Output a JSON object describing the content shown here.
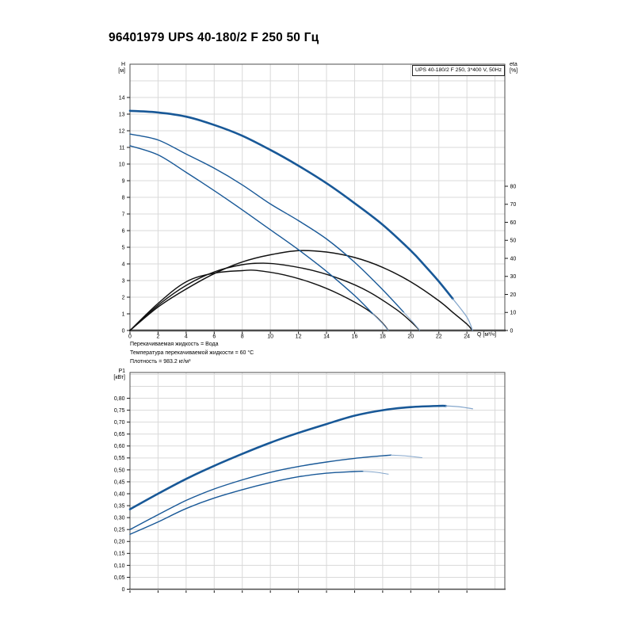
{
  "page": {
    "title": "96401979 UPS 40-180/2 F 250 50 Гц"
  },
  "notes": {
    "line1": "Перекачиваемая жидкость = Вода",
    "line2": "Температура перекачиваемой жидкости = 60 °C",
    "line3": "Плотность = 983.2 кг/м³"
  },
  "colors": {
    "curve_blue": "#185897",
    "curve_blue_light": "#85a7cc",
    "curve_black": "#111111",
    "grid": "#d9d9d9",
    "frame": "#4d4d4d",
    "tick": "#1a1a1a",
    "text": "#000000"
  },
  "chart_data": [
    {
      "id": "head-efficiency-chart",
      "type": "line",
      "legend": "UPS 40-180/2 F 250, 3*400 V, 50Hz",
      "xlabel": "Q [м³/ч]",
      "ylabel_left": [
        "H",
        "[м]"
      ],
      "ylabel_right": [
        "eta",
        "[%]"
      ],
      "xlim": [
        0,
        26.7
      ],
      "ylim_left": [
        0,
        16
      ],
      "ylim_right": [
        0,
        147.7
      ],
      "grid": true,
      "x_grid": [
        2,
        4,
        6,
        8,
        10,
        12,
        14,
        16,
        18,
        20,
        22,
        24,
        26
      ],
      "y_grid": [
        1,
        2,
        3,
        4,
        5,
        6,
        7,
        8,
        9,
        10,
        11,
        12,
        13,
        14,
        15
      ],
      "x_tick_values": [
        0,
        2,
        4,
        6,
        8,
        10,
        12,
        14,
        16,
        18,
        20,
        22,
        24
      ],
      "x_tick_labels": [
        "0",
        "2",
        "4",
        "6",
        "8",
        "10",
        "12",
        "14",
        "16",
        "18",
        "20",
        "22",
        "24"
      ],
      "y_tick_values_left": [
        0,
        1,
        2,
        3,
        4,
        5,
        6,
        7,
        8,
        9,
        10,
        11,
        12,
        13,
        14
      ],
      "y_tick_labels_left": [
        "0",
        "1",
        "2",
        "3",
        "4",
        "5",
        "6",
        "7",
        "8",
        "9",
        "10",
        "11",
        "12",
        "13",
        "14"
      ],
      "y_tick_values_right": [
        0,
        10,
        20,
        30,
        40,
        50,
        60,
        70,
        80
      ],
      "y_tick_labels_right": [
        "0",
        "10",
        "20",
        "30",
        "40",
        "50",
        "60",
        "70",
        "80"
      ],
      "series": [
        {
          "name": "eta-curve-speed3",
          "axis": "right",
          "role": "efficiency",
          "color": "#111111",
          "width": 1.5,
          "points": [
            [
              0,
              0
            ],
            [
              2,
              13
            ],
            [
              4,
              23
            ],
            [
              6,
              31.5
            ],
            [
              8,
              38
            ],
            [
              10,
              42
            ],
            [
              12,
              44.3
            ],
            [
              14,
              43.5
            ],
            [
              16,
              40.5
            ],
            [
              18,
              35
            ],
            [
              20,
              27
            ],
            [
              22,
              16.5
            ],
            [
              23,
              10
            ],
            [
              24,
              3.5
            ],
            [
              24.4,
              0
            ]
          ]
        },
        {
          "name": "eta-curve-speed2",
          "axis": "right",
          "role": "efficiency",
          "color": "#111111",
          "width": 1.4,
          "points": [
            [
              0,
              0
            ],
            [
              2,
              14
            ],
            [
              4,
              25
            ],
            [
              6,
              32.5
            ],
            [
              8,
              36.5
            ],
            [
              9.5,
              37.3
            ],
            [
              11,
              36.3
            ],
            [
              13,
              33.3
            ],
            [
              15,
              28.5
            ],
            [
              17,
              21.5
            ],
            [
              19,
              11.5
            ],
            [
              20,
              5
            ],
            [
              20.65,
              0
            ]
          ]
        },
        {
          "name": "eta-curve-speed1",
          "axis": "right",
          "role": "efficiency",
          "color": "#111111",
          "width": 1.4,
          "points": [
            [
              0,
              0
            ],
            [
              2,
              15
            ],
            [
              4,
              27
            ],
            [
              6,
              31.8
            ],
            [
              8,
              33.2
            ],
            [
              9,
              33.3
            ],
            [
              11,
              30.8
            ],
            [
              13,
              26.3
            ],
            [
              15,
              19.8
            ],
            [
              17,
              11
            ],
            [
              18,
              4
            ],
            [
              18.4,
              0
            ]
          ]
        },
        {
          "name": "head-curve-speed1",
          "axis": "left",
          "role": "head",
          "color": "#185897",
          "width": 1.4,
          "points": [
            [
              0,
              11.1
            ],
            [
              2,
              10.55
            ],
            [
              4,
              9.5
            ],
            [
              6,
              8.4
            ],
            [
              8,
              7.25
            ],
            [
              10,
              6.05
            ],
            [
              12,
              4.85
            ],
            [
              14,
              3.55
            ],
            [
              16,
              2.1
            ],
            [
              17.3,
              1.0
            ]
          ],
          "tail": [
            [
              18,
              0.4
            ],
            [
              18.4,
              0
            ]
          ]
        },
        {
          "name": "head-curve-speed2",
          "axis": "left",
          "role": "head",
          "color": "#185897",
          "width": 1.4,
          "points": [
            [
              0,
              11.8
            ],
            [
              2,
              11.45
            ],
            [
              4,
              10.6
            ],
            [
              6,
              9.75
            ],
            [
              8,
              8.75
            ],
            [
              10,
              7.6
            ],
            [
              12,
              6.6
            ],
            [
              14,
              5.5
            ],
            [
              16,
              4.1
            ],
            [
              18,
              2.45
            ],
            [
              19.5,
              1.1
            ]
          ],
          "tail": [
            [
              20.2,
              0.45
            ],
            [
              20.65,
              0
            ]
          ]
        },
        {
          "name": "head-curve-speed3",
          "axis": "left",
          "role": "head",
          "color": "#185897",
          "width": 2.6,
          "points": [
            [
              0,
              13.2
            ],
            [
              2,
              13.1
            ],
            [
              4,
              12.85
            ],
            [
              6,
              12.35
            ],
            [
              8,
              11.7
            ],
            [
              10,
              10.85
            ],
            [
              12,
              9.9
            ],
            [
              14,
              8.85
            ],
            [
              16,
              7.65
            ],
            [
              18,
              6.35
            ],
            [
              20,
              4.8
            ],
            [
              21,
              3.9
            ],
            [
              22,
              2.95
            ],
            [
              23,
              1.9
            ]
          ],
          "tail": [
            [
              24,
              0.8
            ],
            [
              24.4,
              0
            ]
          ]
        }
      ]
    },
    {
      "id": "power-chart",
      "type": "line",
      "xlabel": "",
      "ylabel_left": [
        "P1",
        "[кВт]"
      ],
      "xlim": [
        0,
        26.7
      ],
      "ylim_left": [
        0,
        0.908
      ],
      "grid": true,
      "x_grid": [
        2,
        4,
        6,
        8,
        10,
        12,
        14,
        16,
        18,
        20,
        22,
        24,
        26
      ],
      "y_grid": [
        0.05,
        0.1,
        0.15,
        0.2,
        0.25,
        0.3,
        0.35,
        0.4,
        0.45,
        0.5,
        0.55,
        0.6,
        0.65,
        0.7,
        0.75,
        0.8,
        0.85,
        0.9
      ],
      "x_tick_values": [
        0,
        2,
        4,
        6,
        8,
        10,
        12,
        14,
        16,
        18,
        20,
        22,
        24
      ],
      "x_tick_labels": [
        "",
        "",
        "",
        "",
        "",
        "",
        "",
        "",
        "",
        "",
        "",
        "",
        ""
      ],
      "y_tick_values_left": [
        0,
        0.05,
        0.1,
        0.15,
        0.2,
        0.25,
        0.3,
        0.35,
        0.4,
        0.45,
        0.5,
        0.55,
        0.6,
        0.65,
        0.7,
        0.75,
        0.8
      ],
      "y_tick_labels_left": [
        "0",
        "0,05",
        "0,10",
        "0,15",
        "0,20",
        "0,25",
        "0,30",
        "0,35",
        "0,40",
        "0,45",
        "0,50",
        "0,55",
        "0,60",
        "0,65",
        "0,70",
        "0,75",
        "0,80"
      ],
      "series": [
        {
          "name": "power-curve-speed1",
          "axis": "left",
          "role": "power",
          "color": "#185897",
          "width": 1.4,
          "points": [
            [
              0,
              0.23
            ],
            [
              2,
              0.282
            ],
            [
              4,
              0.338
            ],
            [
              6,
              0.382
            ],
            [
              8,
              0.417
            ],
            [
              10,
              0.447
            ],
            [
              12,
              0.471
            ],
            [
              14,
              0.486
            ],
            [
              16,
              0.493
            ],
            [
              16.6,
              0.494
            ]
          ],
          "tail": [
            [
              17.5,
              0.49
            ],
            [
              18.4,
              0.482
            ]
          ]
        },
        {
          "name": "power-curve-speed2",
          "axis": "left",
          "role": "power",
          "color": "#185897",
          "width": 1.4,
          "points": [
            [
              0,
              0.25
            ],
            [
              2,
              0.312
            ],
            [
              4,
              0.372
            ],
            [
              6,
              0.42
            ],
            [
              8,
              0.458
            ],
            [
              10,
              0.49
            ],
            [
              12,
              0.514
            ],
            [
              14,
              0.533
            ],
            [
              16,
              0.548
            ],
            [
              18,
              0.559
            ],
            [
              18.6,
              0.562
            ]
          ],
          "tail": [
            [
              19.7,
              0.558
            ],
            [
              20.8,
              0.551
            ]
          ]
        },
        {
          "name": "power-curve-speed3",
          "axis": "left",
          "role": "power",
          "color": "#185897",
          "width": 2.6,
          "points": [
            [
              0,
              0.335
            ],
            [
              2,
              0.4
            ],
            [
              4,
              0.462
            ],
            [
              6,
              0.517
            ],
            [
              8,
              0.567
            ],
            [
              10,
              0.614
            ],
            [
              12,
              0.655
            ],
            [
              14,
              0.692
            ],
            [
              16,
              0.727
            ],
            [
              18,
              0.75
            ],
            [
              20,
              0.763
            ],
            [
              22,
              0.768
            ],
            [
              22.5,
              0.768
            ]
          ],
          "tail": [
            [
              23.5,
              0.764
            ],
            [
              24.4,
              0.756
            ]
          ]
        }
      ]
    }
  ]
}
